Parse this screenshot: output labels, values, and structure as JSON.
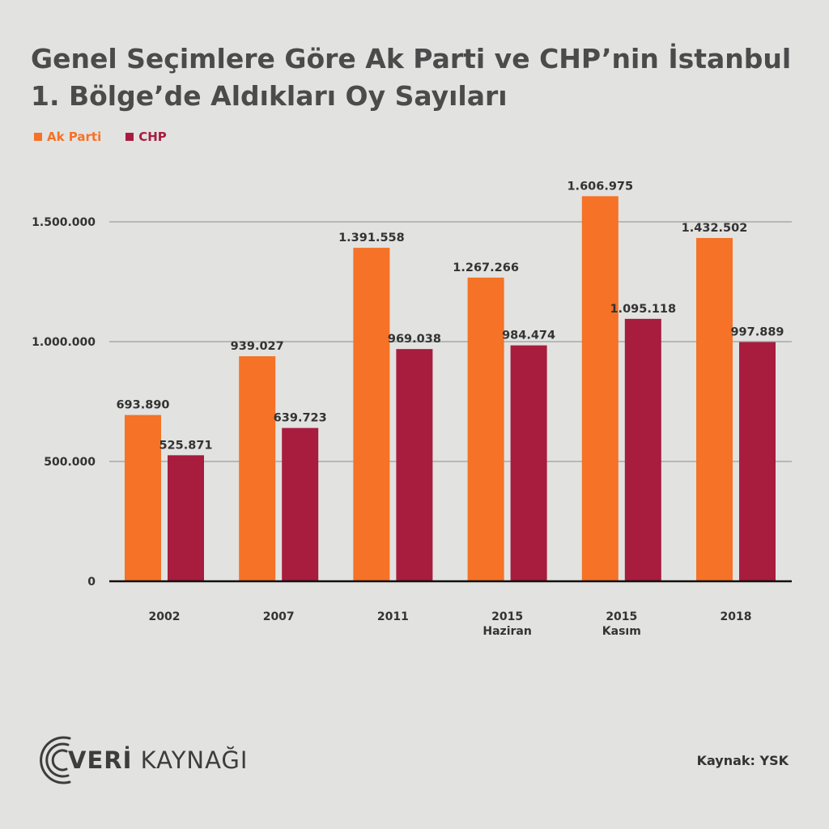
{
  "title_line1": "Genel Seçimlere Göre Ak Parti ve CHP’nin İstanbul",
  "title_line2": "1. Bölge’de Aldıkları Oy Sayıları",
  "legend": [
    {
      "label": "Ak Parti",
      "color": "#f57226"
    },
    {
      "label": "CHP",
      "color": "#a81c3d"
    }
  ],
  "logo": {
    "bold": "VERİ",
    "light": "KAYNAĞI"
  },
  "source": "Kaynak: YSK",
  "chart_data": {
    "type": "bar",
    "title": "Genel Seçimlere Göre Ak Parti ve CHP’nin İstanbul 1. Bölge’de Aldıkları Oy Sayıları",
    "categories": [
      [
        "2002"
      ],
      [
        "2007"
      ],
      [
        "2011"
      ],
      [
        "2015",
        "Haziran"
      ],
      [
        "2015",
        "Kasım"
      ],
      [
        "2018"
      ]
    ],
    "series": [
      {
        "name": "Ak Parti",
        "color": "#f57226",
        "values": [
          693890,
          939027,
          1391558,
          1267266,
          1606975,
          1432502
        ],
        "labels": [
          "693.890",
          "939.027",
          "1.391.558",
          "1.267.266",
          "1.606.975",
          "1.432.502"
        ]
      },
      {
        "name": "CHP",
        "color": "#a81c3d",
        "values": [
          525871,
          639723,
          969038,
          984474,
          1095118,
          997889
        ],
        "labels": [
          "525.871",
          "639.723",
          "969.038",
          "984.474",
          "1.095.118",
          "997.889"
        ]
      }
    ],
    "yticks": [
      0,
      500000,
      1000000,
      1500000
    ],
    "ytick_labels": [
      "0",
      "500.000",
      "1.000.000",
      "1.500.000"
    ],
    "ylim": [
      0,
      1600000
    ],
    "grid": true,
    "legend_position": "top-left"
  }
}
